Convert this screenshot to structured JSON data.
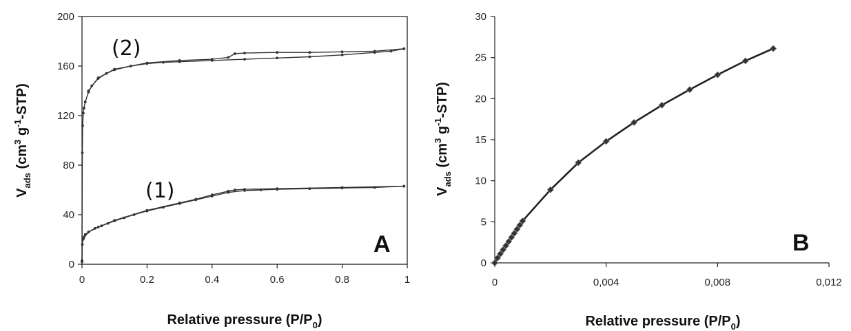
{
  "chart_data": [
    {
      "id": "A",
      "type": "line",
      "panel_label": "A",
      "xlabel": "Relative pressure (P/P",
      "xlabel_sub": "0",
      "xlabel_tail": ")",
      "ylabel_prefix": "V",
      "ylabel_sub": "ads",
      "ylabel_mid": " (cm",
      "ylabel_sup1": "3",
      "ylabel_mid2": " g",
      "ylabel_sup2": "-1",
      "ylabel_tail": "-STP)",
      "xlim": [
        0,
        1
      ],
      "ylim": [
        0,
        200
      ],
      "xticks": [
        "0",
        "0.2",
        "0.4",
        "0.6",
        "0.8",
        "1"
      ],
      "yticks": [
        "0",
        "40",
        "80",
        "120",
        "160",
        "200"
      ],
      "grid": false,
      "annotations": [
        "(1)",
        "(2)"
      ],
      "series": [
        {
          "label": "(1)",
          "adsorption": [
            [
              0.0,
              2
            ],
            [
              0.001,
              16
            ],
            [
              0.003,
              20
            ],
            [
              0.006,
              22
            ],
            [
              0.01,
              24
            ],
            [
              0.02,
              26
            ],
            [
              0.04,
              29
            ],
            [
              0.06,
              31
            ],
            [
              0.08,
              33
            ],
            [
              0.1,
              35
            ],
            [
              0.13,
              37.5
            ],
            [
              0.16,
              40
            ],
            [
              0.2,
              43
            ],
            [
              0.25,
              46
            ],
            [
              0.3,
              49
            ],
            [
              0.35,
              52
            ],
            [
              0.4,
              55
            ],
            [
              0.45,
              58
            ],
            [
              0.5,
              59.5
            ],
            [
              0.55,
              60
            ],
            [
              0.6,
              60.5
            ],
            [
              0.7,
              61
            ],
            [
              0.8,
              61.5
            ],
            [
              0.9,
              62
            ],
            [
              0.99,
              63
            ]
          ],
          "desorption": [
            [
              0.99,
              63
            ],
            [
              0.8,
              62
            ],
            [
              0.6,
              61
            ],
            [
              0.5,
              60.5
            ],
            [
              0.47,
              60
            ],
            [
              0.45,
              59
            ],
            [
              0.4,
              56
            ],
            [
              0.35,
              52.5
            ],
            [
              0.3,
              49.5
            ],
            [
              0.2,
              43.5
            ],
            [
              0.1,
              35.5
            ],
            [
              0.05,
              30
            ],
            [
              0.02,
              26
            ],
            [
              0.005,
              21
            ]
          ]
        },
        {
          "label": "(2)",
          "adsorption": [
            [
              0.0,
              3
            ],
            [
              0.001,
              90
            ],
            [
              0.002,
              112
            ],
            [
              0.004,
              122
            ],
            [
              0.006,
              126
            ],
            [
              0.01,
              131
            ],
            [
              0.02,
              139
            ],
            [
              0.03,
              144
            ],
            [
              0.05,
              150
            ],
            [
              0.075,
              154
            ],
            [
              0.1,
              157
            ],
            [
              0.15,
              160
            ],
            [
              0.2,
              162
            ],
            [
              0.25,
              163
            ],
            [
              0.3,
              163.5
            ],
            [
              0.4,
              164.5
            ],
            [
              0.5,
              165.5
            ],
            [
              0.6,
              166.5
            ],
            [
              0.7,
              167.5
            ],
            [
              0.8,
              169
            ],
            [
              0.9,
              171
            ],
            [
              0.95,
              172
            ],
            [
              0.99,
              174
            ]
          ],
          "desorption": [
            [
              0.99,
              174
            ],
            [
              0.9,
              172
            ],
            [
              0.8,
              171.5
            ],
            [
              0.7,
              171
            ],
            [
              0.6,
              171
            ],
            [
              0.5,
              170.5
            ],
            [
              0.47,
              170
            ],
            [
              0.45,
              167
            ],
            [
              0.4,
              165.5
            ],
            [
              0.3,
              164.5
            ],
            [
              0.2,
              162.5
            ],
            [
              0.1,
              157.5
            ],
            [
              0.05,
              150.5
            ],
            [
              0.02,
              140
            ]
          ]
        }
      ]
    },
    {
      "id": "B",
      "type": "line",
      "panel_label": "B",
      "xlabel": "Relative pressure (P/P",
      "xlabel_sub": "0",
      "xlabel_tail": ")",
      "ylabel_prefix": "V",
      "ylabel_sub": "ads",
      "ylabel_mid": " (cm",
      "ylabel_sup1": "3",
      "ylabel_mid2": " g",
      "ylabel_sup2": "-1",
      "ylabel_tail": "-STP)",
      "xlim": [
        0,
        0.012
      ],
      "ylim": [
        0,
        30
      ],
      "xticks": [
        "0",
        "0,004",
        "0,008",
        "0,012"
      ],
      "yticks": [
        "0",
        "5",
        "10",
        "15",
        "20",
        "25",
        "30"
      ],
      "grid": false,
      "series": [
        {
          "marker": "diamond",
          "x": [
            0.0,
            0.0001,
            0.0002,
            0.0003,
            0.0004,
            0.0005,
            0.0006,
            0.0007,
            0.0008,
            0.0009,
            0.001,
            0.002,
            0.003,
            0.004,
            0.005,
            0.006,
            0.007,
            0.008,
            0.009,
            0.01
          ],
          "y": [
            0.0,
            0.6,
            1.1,
            1.6,
            2.1,
            2.6,
            3.1,
            3.6,
            4.1,
            4.6,
            5.1,
            8.9,
            12.2,
            14.8,
            17.1,
            19.2,
            21.1,
            22.9,
            24.6,
            26.1
          ]
        }
      ]
    }
  ]
}
